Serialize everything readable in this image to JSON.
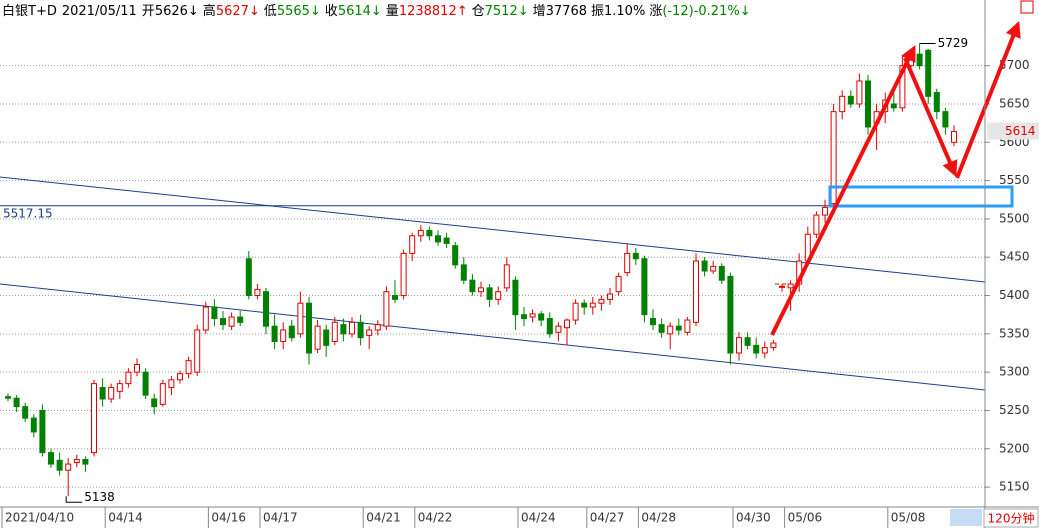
{
  "chart_data": {
    "type": "candlestick",
    "title": "白银T+D",
    "date": "2021/05/11",
    "stats": [
      {
        "label": "开",
        "value": "5626↓",
        "color": "#000000"
      },
      {
        "label": "高",
        "value": "5627↓",
        "color": "#e00000"
      },
      {
        "label": "低",
        "value": "5565↓",
        "color": "#008000"
      },
      {
        "label": "收",
        "value": "5614↓",
        "color": "#008000"
      },
      {
        "label": "量",
        "value": "1238812↑",
        "color": "#e00000"
      },
      {
        "label": "仓",
        "value": "7512↓",
        "color": "#008000"
      },
      {
        "label": "增",
        "value": "37768",
        "color": "#000000"
      },
      {
        "label": "振",
        "value": "1.10%",
        "color": "#000000"
      },
      {
        "label": "涨",
        "value": "(-12)-0.21%↓",
        "color": "#008000"
      }
    ],
    "period": "120分钟",
    "up_color": "#e00000",
    "down_color": "#008000",
    "grid": true,
    "ylim": [
      5124,
      5757
    ],
    "yticks": [
      5150,
      5200,
      5250,
      5300,
      5350,
      5400,
      5450,
      5500,
      5550,
      5600,
      5650,
      5700
    ],
    "reference_line": 5517.15,
    "categories": [
      "2021/04/10",
      null,
      null,
      null,
      null,
      null,
      null,
      null,
      null,
      null,
      null,
      null,
      "04/14",
      null,
      null,
      null,
      null,
      null,
      null,
      null,
      null,
      null,
      null,
      null,
      "04/16",
      null,
      null,
      null,
      null,
      null,
      "04/17",
      null,
      null,
      null,
      null,
      null,
      null,
      null,
      null,
      null,
      null,
      null,
      "04/21",
      null,
      null,
      null,
      null,
      null,
      "04/22",
      null,
      null,
      null,
      null,
      null,
      null,
      null,
      null,
      null,
      null,
      null,
      "04/24",
      null,
      null,
      null,
      null,
      null,
      null,
      null,
      "04/27",
      null,
      null,
      null,
      null,
      null,
      "04/28",
      null,
      null,
      null,
      null,
      null,
      null,
      null,
      null,
      null,
      null,
      "04/30",
      null,
      null,
      null,
      null,
      null,
      "05/06",
      null,
      null,
      null,
      null,
      null,
      null,
      null,
      null,
      null,
      null,
      null,
      "05/08",
      null,
      null,
      null,
      null,
      null,
      null,
      null
    ],
    "open": [
      5268,
      5266,
      5255,
      5240,
      5250,
      5195,
      5185,
      5172,
      5182,
      5186,
      5195,
      5280,
      5265,
      5275,
      5285,
      5300,
      5300,
      5265,
      5258,
      5280,
      5290,
      5298,
      5300,
      5355,
      5385,
      5370,
      5360,
      5372,
      5448,
      5400,
      5405,
      5360,
      5340,
      5360,
      5350,
      5390,
      5330,
      5355,
      5340,
      5362,
      5350,
      5365,
      5348,
      5355,
      5360,
      5400,
      5400,
      5455,
      5478,
      5485,
      5478,
      5475,
      5465,
      5440,
      5420,
      5405,
      5410,
      5395,
      5410,
      5420,
      5375,
      5372,
      5376,
      5370,
      5352,
      5358,
      5368,
      5390,
      5385,
      5390,
      5395,
      5405,
      5430,
      5455,
      5448,
      5370,
      5362,
      5350,
      5360,
      5352,
      5365,
      5445,
      5432,
      5438,
      5425,
      5325,
      5345,
      5335,
      5325,
      5332,
      5412,
      5410,
      5415,
      5445,
      5480,
      5505,
      5520,
      5640,
      5660,
      5650,
      5680,
      5625,
      5640,
      5650,
      5645,
      5700,
      5715,
      5720,
      5665,
      5640,
      5600
    ],
    "high": [
      5272,
      5270,
      5260,
      5245,
      5258,
      5200,
      5195,
      5188,
      5192,
      5190,
      5290,
      5292,
      5285,
      5290,
      5305,
      5318,
      5305,
      5272,
      5290,
      5295,
      5302,
      5320,
      5362,
      5392,
      5395,
      5380,
      5378,
      5380,
      5458,
      5415,
      5410,
      5375,
      5365,
      5368,
      5405,
      5398,
      5368,
      5362,
      5372,
      5370,
      5372,
      5375,
      5360,
      5368,
      5412,
      5420,
      5460,
      5482,
      5492,
      5490,
      5485,
      5482,
      5470,
      5450,
      5428,
      5418,
      5415,
      5412,
      5450,
      5425,
      5385,
      5382,
      5380,
      5378,
      5365,
      5370,
      5395,
      5395,
      5398,
      5400,
      5410,
      5430,
      5468,
      5462,
      5452,
      5382,
      5370,
      5365,
      5370,
      5372,
      5455,
      5450,
      5445,
      5442,
      5430,
      5352,
      5352,
      5345,
      5340,
      5342,
      5415,
      5420,
      5455,
      5490,
      5510,
      5525,
      5650,
      5668,
      5668,
      5690,
      5688,
      5650,
      5665,
      5670,
      5712,
      5718,
      5729,
      5722,
      5670,
      5645,
      5622
    ],
    "low": [
      5262,
      5248,
      5235,
      5215,
      5190,
      5175,
      5165,
      5138,
      5176,
      5170,
      5190,
      5255,
      5260,
      5265,
      5280,
      5295,
      5265,
      5245,
      5255,
      5270,
      5285,
      5292,
      5295,
      5350,
      5360,
      5355,
      5355,
      5360,
      5395,
      5395,
      5350,
      5330,
      5330,
      5340,
      5345,
      5310,
      5325,
      5320,
      5335,
      5340,
      5345,
      5335,
      5330,
      5348,
      5355,
      5390,
      5395,
      5445,
      5470,
      5472,
      5465,
      5462,
      5435,
      5415,
      5400,
      5398,
      5385,
      5388,
      5405,
      5355,
      5360,
      5365,
      5360,
      5345,
      5340,
      5335,
      5362,
      5375,
      5375,
      5380,
      5388,
      5400,
      5425,
      5440,
      5365,
      5355,
      5345,
      5330,
      5348,
      5348,
      5360,
      5425,
      5428,
      5415,
      5310,
      5315,
      5330,
      5318,
      5318,
      5328,
      5405,
      5380,
      5405,
      5440,
      5475,
      5495,
      5515,
      5630,
      5645,
      5645,
      5610,
      5590,
      5625,
      5640,
      5640,
      5690,
      5695,
      5650,
      5630,
      5610,
      5595
    ],
    "close": [
      5266,
      5255,
      5240,
      5222,
      5195,
      5180,
      5172,
      5180,
      5186,
      5180,
      5285,
      5265,
      5280,
      5285,
      5300,
      5310,
      5270,
      5255,
      5285,
      5290,
      5298,
      5315,
      5355,
      5385,
      5370,
      5362,
      5372,
      5365,
      5400,
      5408,
      5360,
      5340,
      5355,
      5345,
      5390,
      5325,
      5360,
      5335,
      5365,
      5350,
      5365,
      5345,
      5355,
      5362,
      5405,
      5395,
      5455,
      5478,
      5485,
      5478,
      5470,
      5468,
      5440,
      5420,
      5405,
      5410,
      5395,
      5405,
      5440,
      5375,
      5370,
      5376,
      5368,
      5350,
      5360,
      5368,
      5390,
      5385,
      5390,
      5395,
      5402,
      5425,
      5455,
      5448,
      5375,
      5362,
      5352,
      5360,
      5355,
      5368,
      5445,
      5432,
      5438,
      5420,
      5325,
      5345,
      5335,
      5325,
      5332,
      5338,
      5412,
      5415,
      5445,
      5480,
      5505,
      5515,
      5640,
      5660,
      5650,
      5680,
      5620,
      5640,
      5655,
      5645,
      5700,
      5715,
      5700,
      5660,
      5640,
      5620,
      5614
    ]
  }
}
